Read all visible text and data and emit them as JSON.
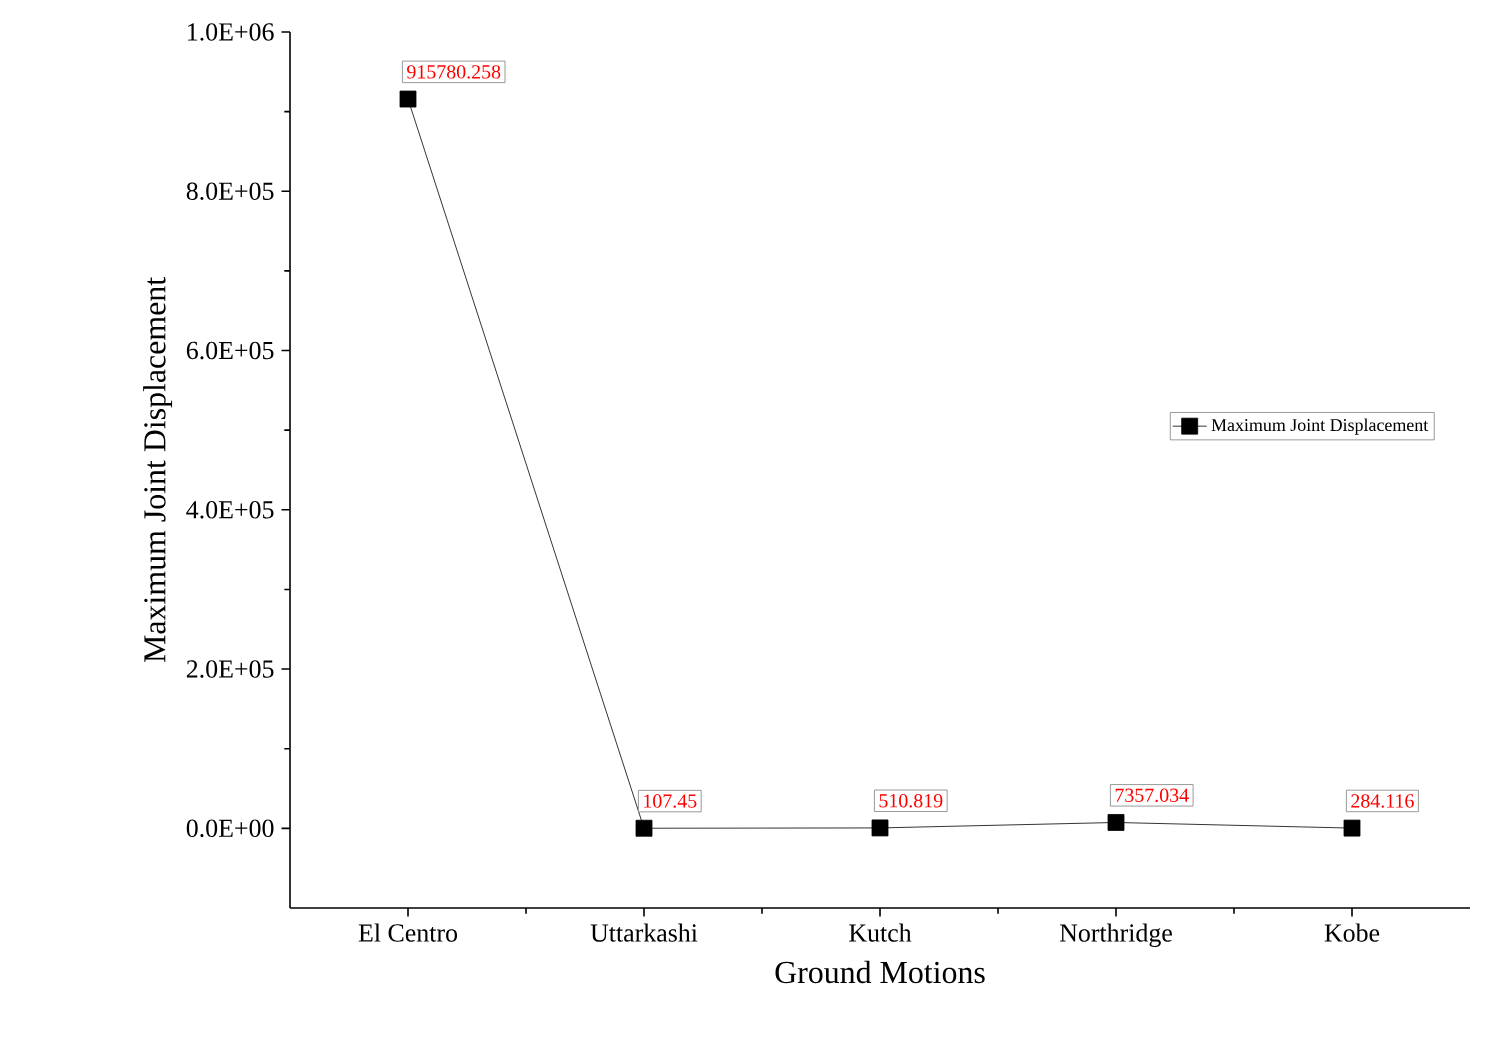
{
  "chart_data": {
    "type": "line",
    "xlabel": "Ground Motions",
    "ylabel": "Maximum Joint Displacement",
    "categories": [
      "El Centro",
      "Uttarkashi",
      "Kutch",
      "Northridge",
      "Kobe"
    ],
    "series": [
      {
        "name": "Maximum Joint Displacement",
        "color": "#000000",
        "values": [
          915780.258,
          107.45,
          510.819,
          7357.034,
          284.116
        ]
      }
    ],
    "ylim": [
      -100000,
      1000000
    ],
    "yticks": [
      {
        "value": 0,
        "label": "0.0E+00"
      },
      {
        "value": 200000,
        "label": "2.0E+05"
      },
      {
        "value": 400000,
        "label": "4.0E+05"
      },
      {
        "value": 600000,
        "label": "6.0E+05"
      },
      {
        "value": 800000,
        "label": "8.0E+05"
      },
      {
        "value": 1000000,
        "label": "1.0E+06"
      }
    ],
    "data_labels": true,
    "legend": "right",
    "marker": "square",
    "line_style": "solid",
    "grid": false
  }
}
